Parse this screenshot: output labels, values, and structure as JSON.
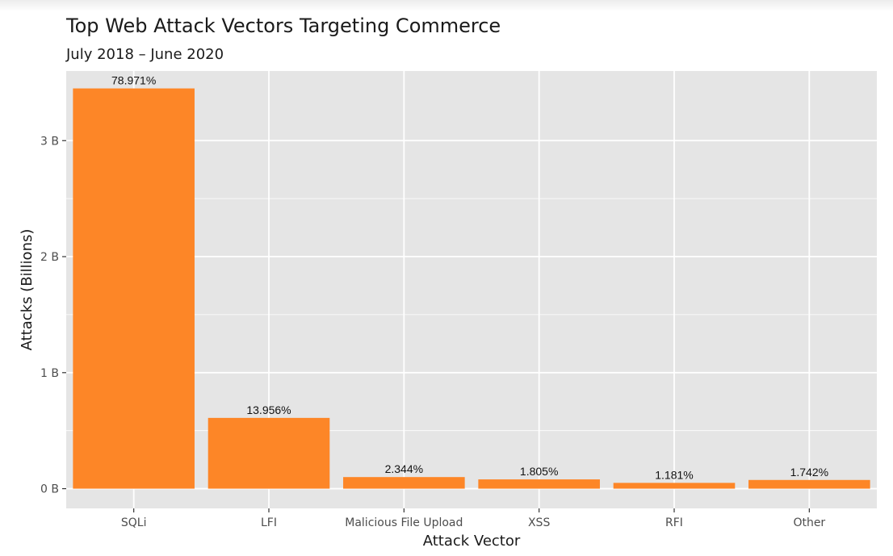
{
  "chart_data": {
    "type": "bar",
    "title": "Top Web Attack Vectors Targeting Commerce",
    "subtitle": "July 2018 – June 2020",
    "xlabel": "Attack Vector",
    "ylabel": "Attacks (Billions)",
    "categories": [
      "SQLi",
      "LFI",
      "Malicious File Upload",
      "XSS",
      "RFI",
      "Other"
    ],
    "values": [
      3.45,
      0.61,
      0.1,
      0.08,
      0.05,
      0.075
    ],
    "value_labels": [
      "78.971%",
      "13.956%",
      "2.344%",
      "1.805%",
      "1.181%",
      "1.742%"
    ],
    "y_ticks": [
      0,
      1,
      2,
      3
    ],
    "y_tick_labels": [
      "0 B",
      "1 B",
      "2 B",
      "3 B"
    ],
    "ylim": [
      -0.17,
      3.6
    ],
    "grid": true,
    "bar_color": "#fd8627",
    "panel_color": "#e5e5e5",
    "grid_color": "#ffffff"
  }
}
